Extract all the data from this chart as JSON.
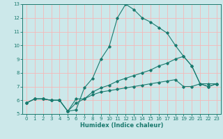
{
  "title": "",
  "xlabel": "Humidex (Indice chaleur)",
  "bg_color": "#cce8ea",
  "grid_color": "#f5b8b8",
  "line_color": "#1a7a6e",
  "xlim": [
    -0.5,
    23.5
  ],
  "ylim": [
    5,
    13
  ],
  "xticks": [
    0,
    1,
    2,
    3,
    4,
    5,
    6,
    7,
    8,
    9,
    10,
    11,
    12,
    13,
    14,
    15,
    16,
    17,
    18,
    19,
    20,
    21,
    22,
    23
  ],
  "yticks": [
    5,
    6,
    7,
    8,
    9,
    10,
    11,
    12,
    13
  ],
  "line1_x": [
    0,
    1,
    2,
    3,
    4,
    5,
    6,
    7,
    8,
    9,
    10,
    11,
    12,
    13,
    14,
    15,
    16,
    17,
    18,
    19,
    20,
    21,
    22,
    23
  ],
  "line1_y": [
    5.8,
    6.1,
    6.1,
    6.0,
    6.0,
    5.2,
    5.3,
    6.9,
    7.6,
    9.0,
    9.9,
    12.0,
    13.0,
    12.6,
    12.0,
    11.7,
    11.3,
    10.9,
    10.0,
    9.2,
    8.5,
    7.2,
    7.0,
    7.2
  ],
  "line2_x": [
    0,
    1,
    2,
    3,
    4,
    5,
    6,
    7,
    8,
    9,
    10,
    11,
    12,
    13,
    14,
    15,
    16,
    17,
    18,
    19,
    20,
    21,
    22,
    23
  ],
  "line2_y": [
    5.8,
    6.1,
    6.1,
    6.0,
    6.0,
    5.2,
    6.1,
    6.1,
    6.6,
    6.9,
    7.1,
    7.4,
    7.6,
    7.8,
    8.0,
    8.2,
    8.5,
    8.7,
    9.0,
    9.2,
    8.5,
    7.2,
    7.0,
    7.2
  ],
  "line3_x": [
    0,
    1,
    2,
    3,
    4,
    5,
    6,
    7,
    8,
    9,
    10,
    11,
    12,
    13,
    14,
    15,
    16,
    17,
    18,
    19,
    20,
    21,
    22,
    23
  ],
  "line3_y": [
    5.8,
    6.1,
    6.1,
    6.0,
    6.0,
    5.2,
    5.8,
    6.1,
    6.4,
    6.6,
    6.7,
    6.8,
    6.9,
    7.0,
    7.1,
    7.2,
    7.3,
    7.4,
    7.5,
    7.0,
    7.0,
    7.2,
    7.2,
    7.2
  ],
  "tick_fontsize": 5.0,
  "xlabel_fontsize": 6.0,
  "marker_size": 1.8,
  "linewidth": 0.8
}
